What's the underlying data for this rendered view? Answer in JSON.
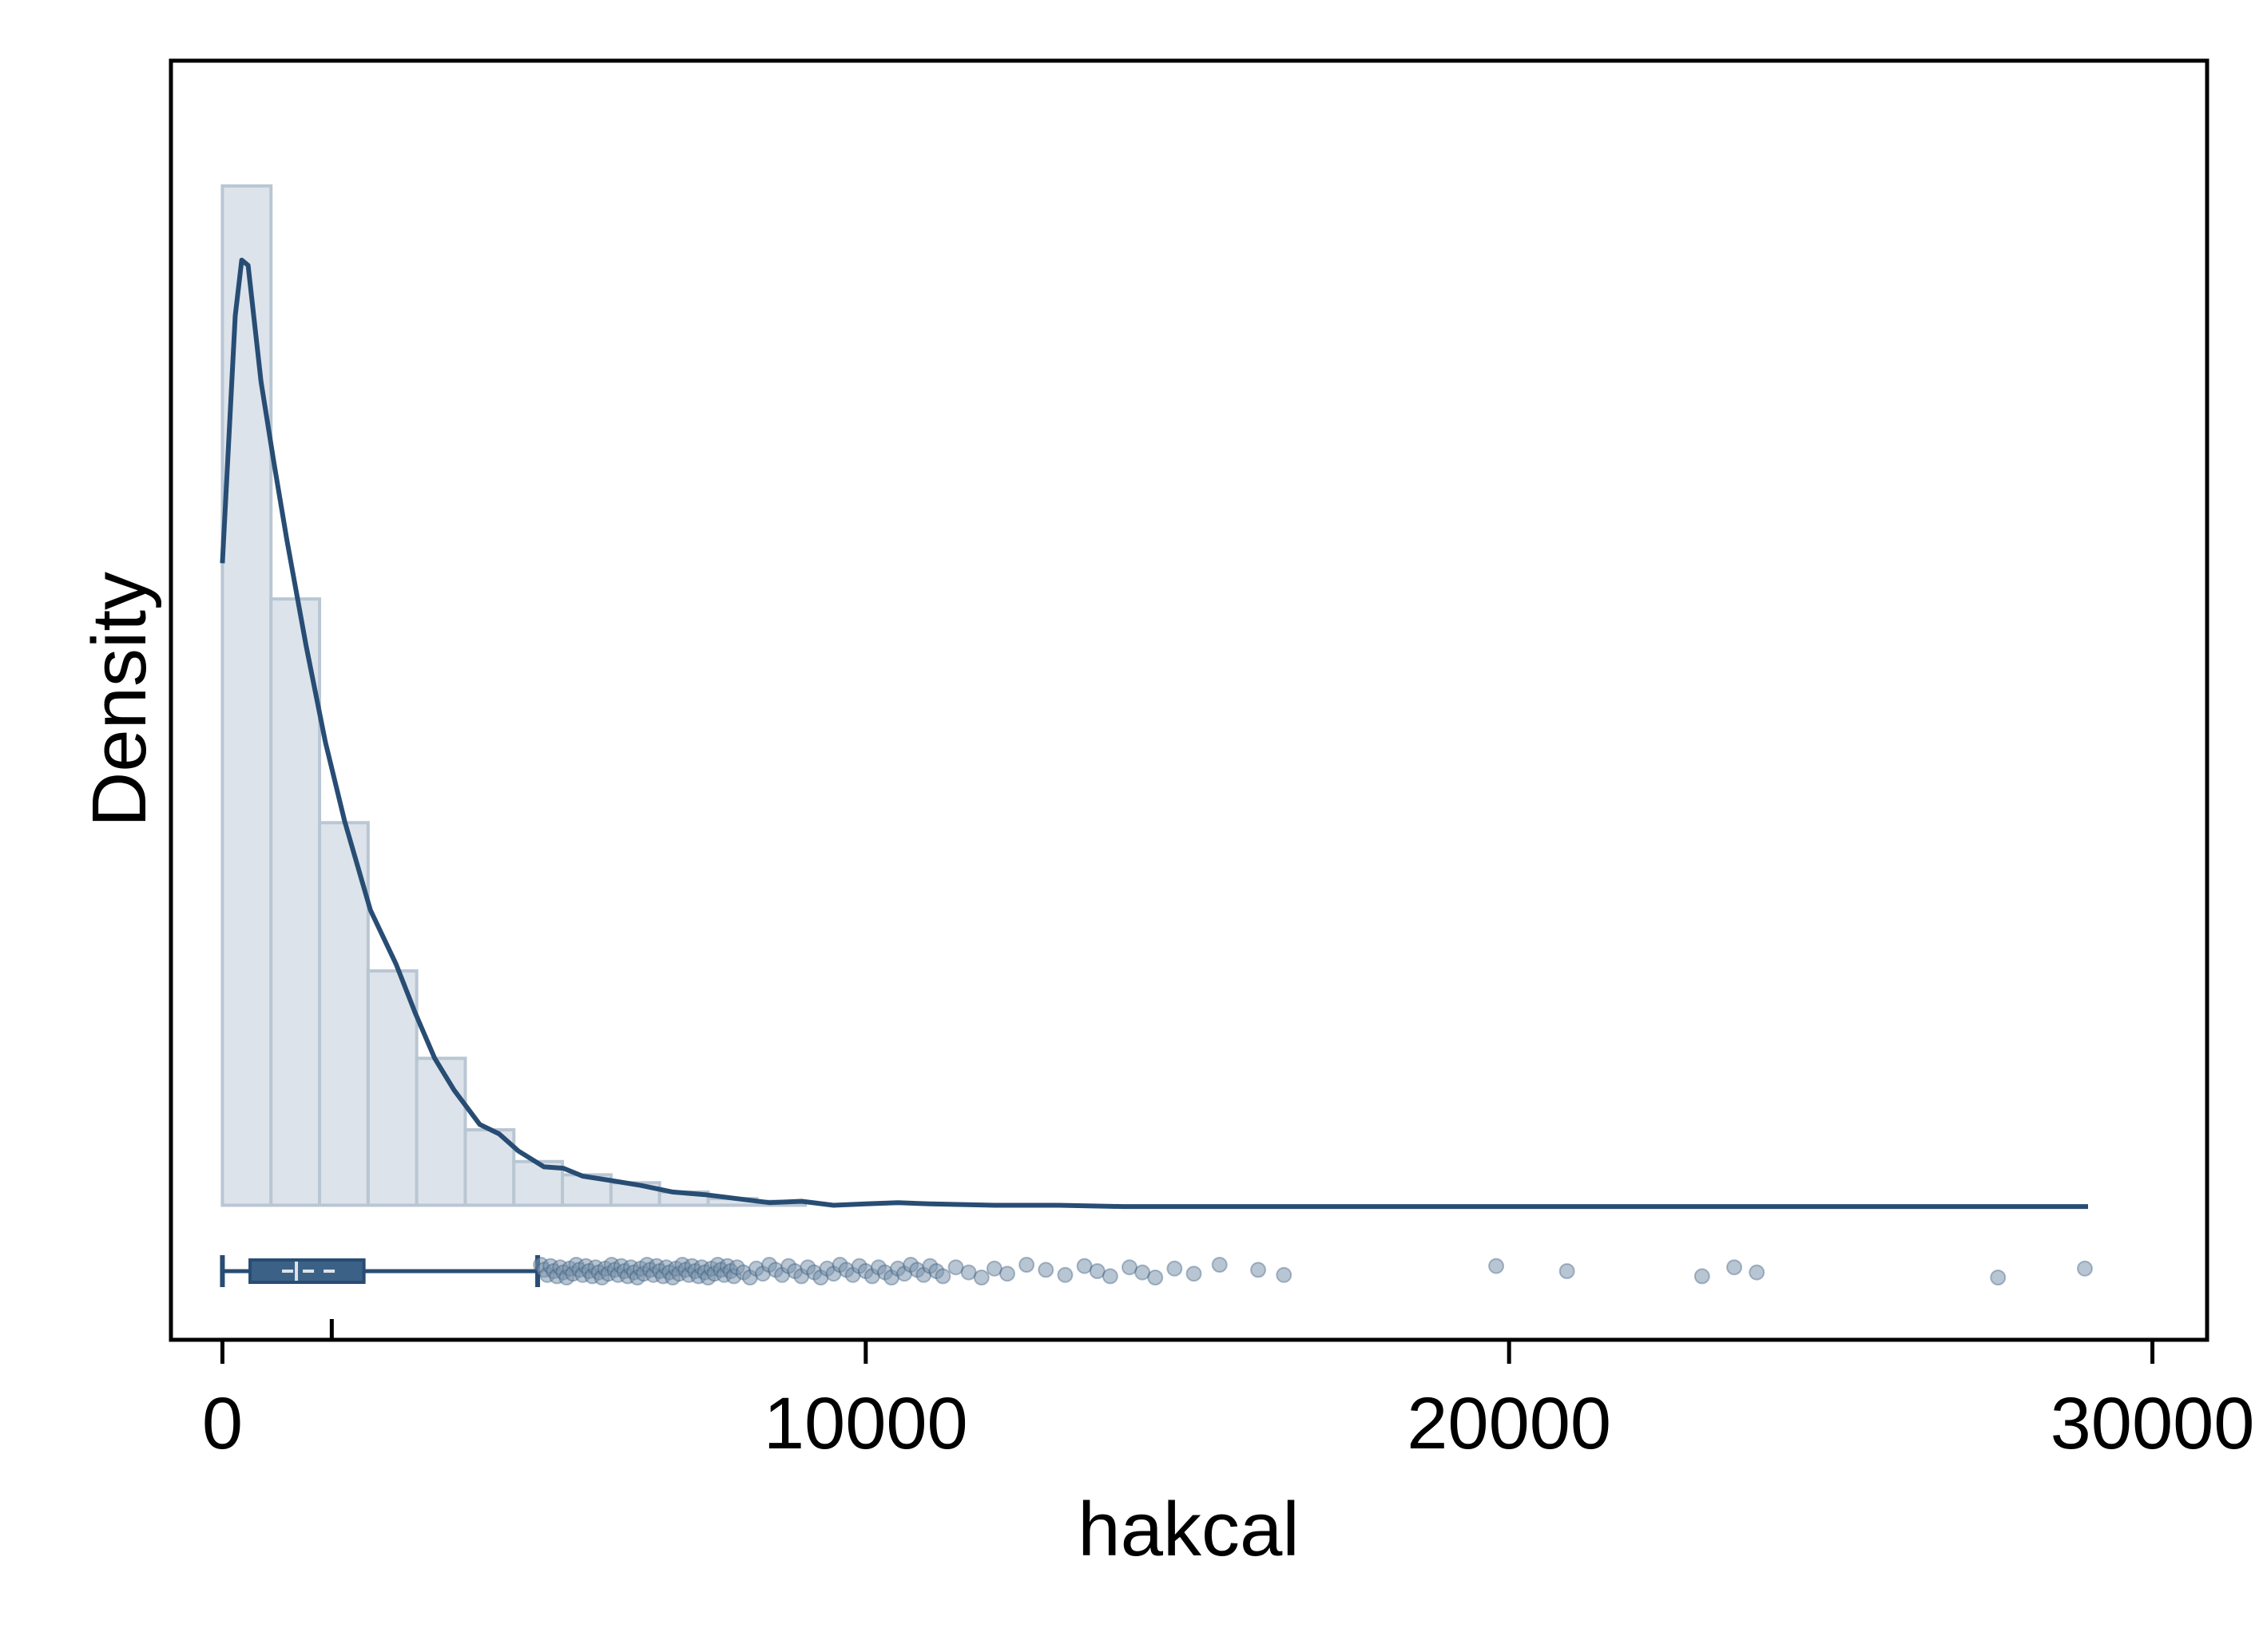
{
  "chart_data": {
    "type": "histogram",
    "xlabel": "hakcal",
    "ylabel": "Density",
    "xlim": [
      -800,
      30850
    ],
    "x_ticks": [
      0,
      10000,
      20000,
      30000
    ],
    "x_tick_labels": [
      "0",
      "10000",
      "20000",
      "30000"
    ],
    "y_ticks_shown": false,
    "colors": {
      "bar_fill": "#dde3ea",
      "bar_stroke": "#b9c6d3",
      "curve": "#284d74",
      "box": "#3b6186",
      "points": "#7d95ad"
    },
    "histogram": {
      "bin_width": 755,
      "bins": [
        {
          "start": 0,
          "end": 755,
          "density": 0.00077
        },
        {
          "start": 755,
          "end": 1510,
          "density": 0.000458
        },
        {
          "start": 1510,
          "end": 2265,
          "density": 0.000289
        },
        {
          "start": 2265,
          "end": 3020,
          "density": 0.000177
        },
        {
          "start": 3020,
          "end": 3775,
          "density": 0.000111
        },
        {
          "start": 3775,
          "end": 4530,
          "density": 5.7e-05
        },
        {
          "start": 4530,
          "end": 5285,
          "density": 3.3e-05
        },
        {
          "start": 5285,
          "end": 6040,
          "density": 2.3e-05
        },
        {
          "start": 6040,
          "end": 6795,
          "density": 1.7e-05
        },
        {
          "start": 6795,
          "end": 7550,
          "density": 1e-05
        },
        {
          "start": 7550,
          "end": 8305,
          "density": 5e-06
        },
        {
          "start": 8305,
          "end": 9060,
          "density": 3e-06
        }
      ]
    },
    "density_curve": {
      "x": [
        0,
        200,
        300,
        400,
        600,
        800,
        1000,
        1300,
        1600,
        1900,
        2300,
        2700,
        3000,
        3300,
        3600,
        4000,
        4300,
        4600,
        5000,
        5300,
        5600,
        6000,
        6500,
        7000,
        7500,
        8000,
        8500,
        9000,
        9500,
        10000,
        10500,
        11000,
        12000,
        13000,
        14000,
        15000,
        17000,
        20000,
        25000,
        29000
      ],
      "y": [
        0.000485,
        0.000672,
        0.000714,
        0.00071,
        0.000622,
        0.000561,
        0.000503,
        0.000423,
        0.00035,
        0.00029,
        0.000223,
        0.000182,
        0.000145,
        0.000111,
        8.7e-05,
        6.1e-05,
        5.4e-05,
        4.1e-05,
        2.9e-05,
        2.8e-05,
        2.2e-05,
        1.9e-05,
        1.5e-05,
        1e-05,
        8e-06,
        5e-06,
        2e-06,
        3e-06,
        0.0,
        1e-06,
        2e-06,
        1e-06,
        0.0,
        0.0,
        -1e-06,
        -1e-06,
        -1e-06,
        -1e-06,
        -1e-06,
        -1e-06
      ],
      "ylim": [
        -3.65e-05,
        0.000826
      ]
    },
    "boxplot": {
      "whisker_low": 0,
      "q1": 430,
      "median": 1150,
      "mean": 1700,
      "q3": 2200,
      "whisker_high": 4900
    },
    "outliers": [
      4950,
      5000,
      5050,
      5100,
      5150,
      5200,
      5250,
      5300,
      5350,
      5400,
      5450,
      5500,
      5550,
      5600,
      5650,
      5700,
      5750,
      5800,
      5850,
      5900,
      5950,
      6000,
      6050,
      6100,
      6150,
      6200,
      6250,
      6300,
      6350,
      6400,
      6450,
      6500,
      6550,
      6600,
      6650,
      6700,
      6750,
      6800,
      6850,
      6900,
      6950,
      7000,
      7050,
      7100,
      7150,
      7200,
      7250,
      7300,
      7350,
      7400,
      7450,
      7500,
      7550,
      7600,
      7650,
      7700,
      7750,
      7800,
      7850,
      7900,
      7950,
      8000,
      8100,
      8200,
      8300,
      8400,
      8500,
      8600,
      8700,
      8800,
      8900,
      9000,
      9100,
      9200,
      9300,
      9400,
      9500,
      9600,
      9700,
      9800,
      9900,
      10000,
      10100,
      10200,
      10300,
      10400,
      10500,
      10600,
      10700,
      10800,
      10900,
      11000,
      11100,
      11200,
      11400,
      11600,
      11800,
      12000,
      12200,
      12500,
      12800,
      13100,
      13400,
      13600,
      13800,
      14100,
      14300,
      14500,
      14800,
      15100,
      15500,
      16100,
      16500,
      19800,
      20900,
      23000,
      23500,
      23850,
      27600,
      28950
    ]
  }
}
